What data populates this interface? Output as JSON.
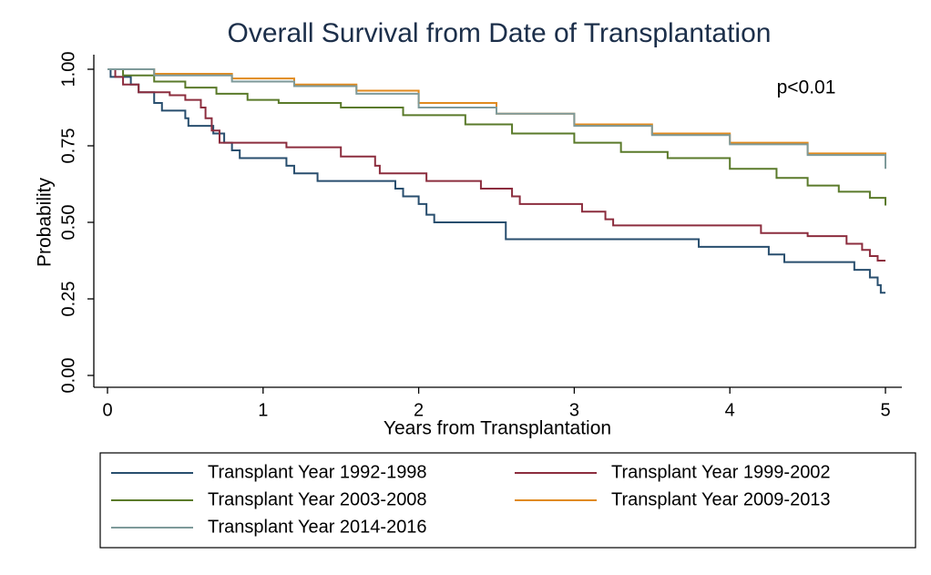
{
  "chart_data": {
    "type": "line",
    "step": "post",
    "title": "Overall Survival from Date of Transplantation",
    "x_label": "Years from Transplantation",
    "y_label": "Probability",
    "annotation": "p<0.01",
    "xlim": [
      0,
      5
    ],
    "xticks": [
      0,
      1,
      2,
      3,
      4,
      5
    ],
    "ylim": [
      0,
      1
    ],
    "yticks": [
      {
        "value": 0,
        "label": "0.00"
      },
      0.25,
      {
        "value": 0.5,
        "label": "0.50"
      },
      0.75,
      {
        "value": 1,
        "label": "1.00"
      }
    ],
    "legend": "bottom",
    "series": [
      {
        "name": "Transplant Year 1992-1998",
        "color": "#284e6e",
        "x": [
          0,
          0.02,
          0.1,
          0.15,
          0.2,
          0.3,
          0.35,
          0.5,
          0.52,
          0.65,
          0.68,
          0.75,
          0.8,
          0.85,
          1.1,
          1.15,
          1.2,
          1.3,
          1.35,
          1.8,
          1.85,
          1.9,
          2.0,
          2.05,
          2.1,
          2.55,
          2.56,
          3.75,
          3.8,
          4.2,
          4.25,
          4.35,
          4.75,
          4.8,
          4.9,
          4.95,
          4.97,
          5
        ],
        "values": [
          1.0,
          0.975,
          0.975,
          0.95,
          0.925,
          0.89,
          0.865,
          0.84,
          0.815,
          0.815,
          0.79,
          0.76,
          0.735,
          0.71,
          0.71,
          0.685,
          0.66,
          0.66,
          0.635,
          0.635,
          0.61,
          0.585,
          0.56,
          0.525,
          0.5,
          0.5,
          0.445,
          0.445,
          0.42,
          0.42,
          0.395,
          0.37,
          0.37,
          0.345,
          0.32,
          0.295,
          0.27,
          0.27
        ]
      },
      {
        "name": "Transplant Year 1999-2002",
        "color": "#8c2d3e",
        "x": [
          0,
          0.05,
          0.1,
          0.2,
          0.35,
          0.4,
          0.5,
          0.6,
          0.63,
          0.67,
          0.72,
          1.1,
          1.15,
          1.45,
          1.5,
          1.7,
          1.72,
          1.75,
          2.0,
          2.05,
          2.35,
          2.4,
          2.55,
          2.6,
          2.65,
          3.0,
          3.05,
          3.2,
          3.25,
          4.15,
          4.2,
          4.5,
          4.75,
          4.85,
          4.9,
          4.95,
          5
        ],
        "values": [
          1.0,
          0.975,
          0.95,
          0.925,
          0.925,
          0.915,
          0.9,
          0.875,
          0.84,
          0.8,
          0.76,
          0.76,
          0.745,
          0.745,
          0.715,
          0.715,
          0.685,
          0.66,
          0.66,
          0.635,
          0.635,
          0.61,
          0.61,
          0.585,
          0.56,
          0.56,
          0.535,
          0.51,
          0.49,
          0.49,
          0.465,
          0.455,
          0.43,
          0.41,
          0.39,
          0.375,
          0.375
        ]
      },
      {
        "name": "Transplant Year 2003-2008",
        "color": "#5a7a2a",
        "x": [
          0,
          0.1,
          0.3,
          0.5,
          0.7,
          0.9,
          1.1,
          1.5,
          1.9,
          2.3,
          2.6,
          3.0,
          3.3,
          3.6,
          4.0,
          4.3,
          4.5,
          4.7,
          4.9,
          5
        ],
        "values": [
          1.0,
          0.98,
          0.96,
          0.94,
          0.92,
          0.9,
          0.89,
          0.875,
          0.85,
          0.82,
          0.79,
          0.76,
          0.73,
          0.71,
          0.675,
          0.645,
          0.62,
          0.6,
          0.58,
          0.555
        ]
      },
      {
        "name": "Transplant Year 2009-2013",
        "color": "#e08a1e",
        "x": [
          0,
          0.3,
          0.8,
          1.2,
          1.6,
          2.0,
          2.5,
          3.0,
          3.5,
          4.0,
          4.5,
          5
        ],
        "values": [
          1.0,
          0.985,
          0.97,
          0.95,
          0.93,
          0.89,
          0.855,
          0.82,
          0.79,
          0.76,
          0.725,
          0.69
        ]
      },
      {
        "name": "Transplant Year 2014-2016",
        "color": "#7e9a9a",
        "x": [
          0,
          0.3,
          0.8,
          1.2,
          1.6,
          2.0,
          2.5,
          3.0,
          3.5,
          4.0,
          4.5,
          5
        ],
        "values": [
          1.0,
          0.98,
          0.96,
          0.945,
          0.92,
          0.875,
          0.855,
          0.815,
          0.785,
          0.755,
          0.72,
          0.675
        ]
      }
    ]
  }
}
